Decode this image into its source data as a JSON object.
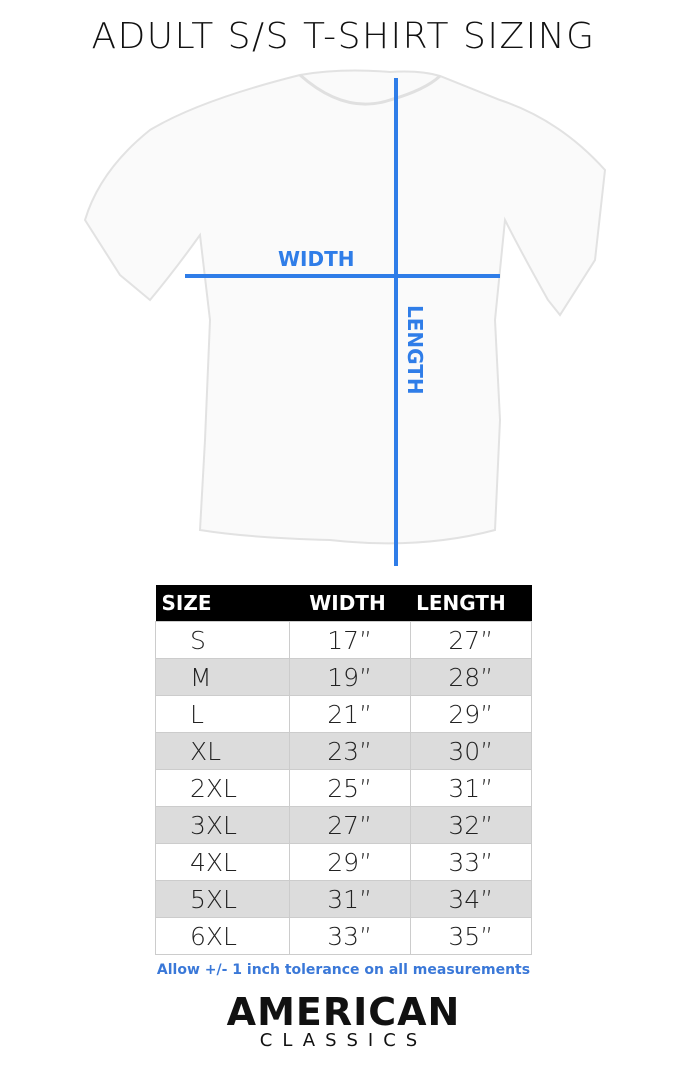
{
  "title": "ADULT S/S T-SHIRT SIZING",
  "diagram": {
    "width_label": "WIDTH",
    "length_label": "LENGTH",
    "line_color": "#2f7de8"
  },
  "table": {
    "headers": [
      "SIZE",
      "WIDTH",
      "LENGTH"
    ],
    "rows": [
      [
        "S",
        "17”",
        "27”"
      ],
      [
        "M",
        "19”",
        "28”"
      ],
      [
        "L",
        "21”",
        "29”"
      ],
      [
        "XL",
        "23”",
        "30”"
      ],
      [
        "2XL",
        "25”",
        "31”"
      ],
      [
        "3XL",
        "27”",
        "32”"
      ],
      [
        "4XL",
        "29”",
        "33”"
      ],
      [
        "5XL",
        "31”",
        "34”"
      ],
      [
        "6XL",
        "33”",
        "35”"
      ]
    ]
  },
  "note": "Allow +/- 1 inch tolerance on all measurements",
  "logo": {
    "line1": "AMERICAN",
    "line2": "CLASSICS"
  }
}
